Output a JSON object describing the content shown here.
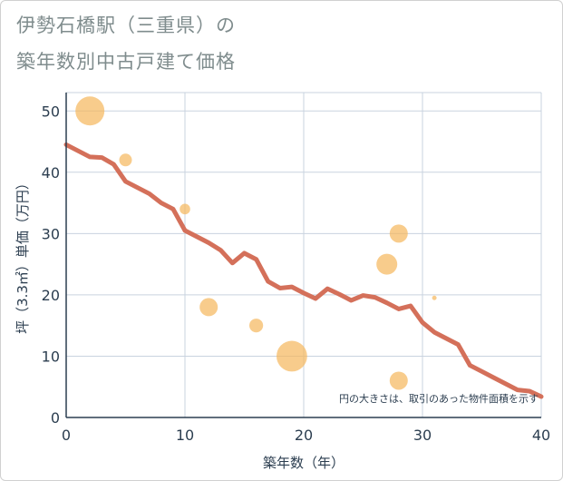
{
  "title_line1": "伊勢石橋駅（三重県）の",
  "title_line2": "築年数別中古戸建て価格",
  "chart_data": {
    "type": "scatter",
    "title": "伊勢石橋駅（三重県）の築年数別中古戸建て価格",
    "xlabel": "築年数（年）",
    "ylabel": "坪（3.3㎡）単価（万円）",
    "xlim": [
      0,
      40
    ],
    "ylim": [
      0,
      53
    ],
    "xticks": [
      0,
      10,
      20,
      30,
      40
    ],
    "yticks": [
      0,
      10,
      20,
      30,
      40,
      50
    ],
    "grid": true,
    "annotation": "円の大きさは、取引のあった物件面積を示す",
    "colors": {
      "bubble": "#f5b75b",
      "line": "#d4705a",
      "grid": "#c9d3df",
      "axis": "#2c3e50"
    },
    "scatter": [
      {
        "x": 2,
        "y": 50,
        "size": 5
      },
      {
        "x": 5,
        "y": 42,
        "size": 2
      },
      {
        "x": 10,
        "y": 34,
        "size": 1.6
      },
      {
        "x": 12,
        "y": 18,
        "size": 3
      },
      {
        "x": 16,
        "y": 15,
        "size": 2.2
      },
      {
        "x": 19,
        "y": 10,
        "size": 5.3
      },
      {
        "x": 27,
        "y": 25,
        "size": 3.5
      },
      {
        "x": 28,
        "y": 30,
        "size": 3
      },
      {
        "x": 28,
        "y": 6,
        "size": 3
      },
      {
        "x": 31,
        "y": 19.5,
        "size": 0.5
      }
    ],
    "trend": {
      "x": [
        0,
        1,
        2,
        3,
        4,
        5,
        6,
        7,
        8,
        9,
        10,
        11,
        12,
        13,
        14,
        15,
        16,
        17,
        18,
        19,
        20,
        21,
        22,
        23,
        24,
        25,
        26,
        27,
        28,
        29,
        30,
        31,
        32,
        33,
        34,
        35,
        36,
        37,
        38,
        39,
        40
      ],
      "y": [
        44.5,
        43.5,
        42.5,
        42.4,
        41.3,
        38.5,
        37.5,
        36.5,
        35,
        34,
        30.5,
        29.5,
        28.5,
        27.3,
        25.2,
        26.8,
        25.8,
        22.2,
        21.1,
        21.3,
        20.3,
        19.4,
        21,
        20.1,
        19.1,
        19.9,
        19.6,
        18.7,
        17.7,
        18.2,
        15.5,
        13.9,
        12.9,
        11.9,
        8.5,
        7.5,
        6.5,
        5.5,
        4.5,
        4.3,
        3.4
      ]
    }
  }
}
